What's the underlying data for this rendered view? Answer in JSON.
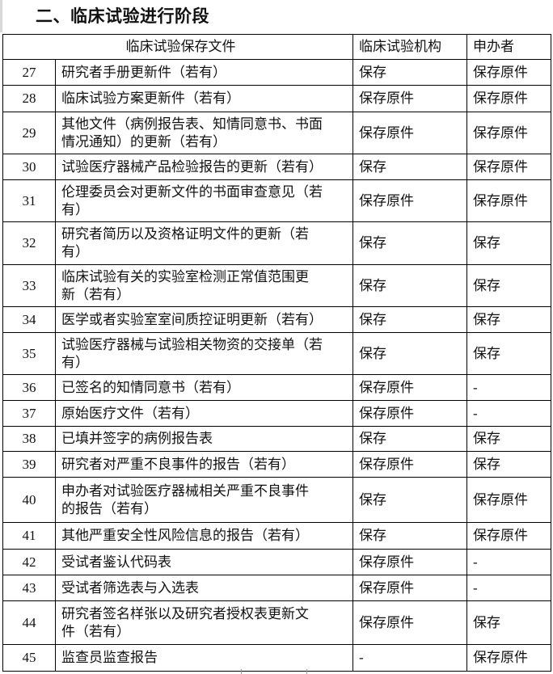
{
  "section_title": "二、临床试验进行阶段",
  "table": {
    "headers": {
      "documents": "临床试验保存文件",
      "institution": "临床试验机构",
      "sponsor": "申办者"
    },
    "rows": [
      {
        "no": "27",
        "doc": [
          "研究者手册更新件（若有）"
        ],
        "institution": "保存",
        "sponsor": "保存原件"
      },
      {
        "no": "28",
        "doc": [
          "临床试验方案更新件（若有）"
        ],
        "institution": "保存原件",
        "sponsor": "保存原件"
      },
      {
        "no": "29",
        "doc": [
          "其他文件（病例报告表、知情同意书、书面",
          "情况通知）的更新（若有）"
        ],
        "institution": "保存原件",
        "sponsor": "保存原件"
      },
      {
        "no": "30",
        "doc": [
          "试验医疗器械产品检验报告的更新（若有）"
        ],
        "institution": "保存",
        "sponsor": "保存原件"
      },
      {
        "no": "31",
        "doc": [
          "伦理委员会对更新文件的书面审查意见（若",
          "有）"
        ],
        "institution": "保存原件",
        "sponsor": "保存原件"
      },
      {
        "no": "32",
        "doc": [
          "研究者简历以及资格证明文件的更新（若",
          "有）"
        ],
        "institution": "保存",
        "sponsor": "保存"
      },
      {
        "no": "33",
        "doc": [
          "临床试验有关的实验室检测正常值范围更",
          "新（若有）"
        ],
        "institution": "保存",
        "sponsor": "保存"
      },
      {
        "no": "34",
        "doc": [
          "医学或者实验室室间质控证明更新（若有）"
        ],
        "institution": "保存",
        "sponsor": "保存"
      },
      {
        "no": "35",
        "doc": [
          "试验医疗器械与试验相关物资的交接单（若",
          "有）"
        ],
        "institution": "保存",
        "sponsor": "保存"
      },
      {
        "no": "36",
        "doc": [
          "已签名的知情同意书（若有）"
        ],
        "institution": "保存原件",
        "sponsor": "-"
      },
      {
        "no": "37",
        "doc": [
          "原始医疗文件（若有）"
        ],
        "institution": "保存原件",
        "sponsor": "-"
      },
      {
        "no": "38",
        "doc": [
          "已填并签字的病例报告表"
        ],
        "institution": "保存",
        "sponsor": "保存"
      },
      {
        "no": "39",
        "doc": [
          "研究者对严重不良事件的报告（若有）"
        ],
        "institution": "保存原件",
        "sponsor": "保存"
      },
      {
        "no": "40",
        "doc": [
          "申办者对试验医疗器械相关严重不良事件",
          "的报告（若有）"
        ],
        "institution": "保存",
        "sponsor": "保存原件"
      },
      {
        "no": "41",
        "doc": [
          "其他严重安全性风险信息的报告（若有）"
        ],
        "institution": "保存",
        "sponsor": "保存原件"
      },
      {
        "no": "42",
        "doc": [
          "受试者鉴认代码表"
        ],
        "institution": "保存原件",
        "sponsor": "-"
      },
      {
        "no": "43",
        "doc": [
          "受试者筛选表与入选表"
        ],
        "institution": "保存原件",
        "sponsor": "-"
      },
      {
        "no": "44",
        "doc": [
          "研究者签名样张以及研究者授权表更新文",
          "件（若有）"
        ],
        "institution": "保存原件",
        "sponsor": "保存"
      },
      {
        "no": "45",
        "doc": [
          "监查员监查报告"
        ],
        "institution": "-",
        "sponsor": "保存原件"
      }
    ]
  }
}
